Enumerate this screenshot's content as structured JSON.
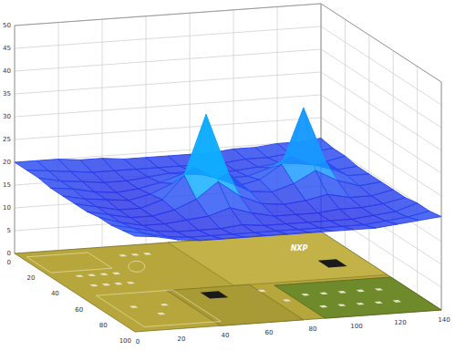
{
  "chart_data": {
    "type": "surface",
    "x": [
      0,
      10,
      20,
      30,
      40,
      50,
      60,
      70,
      80,
      90,
      100,
      110,
      120,
      130,
      140
    ],
    "y": [
      0,
      10,
      20,
      30,
      40,
      50,
      60,
      70,
      80,
      90,
      100
    ],
    "z": [
      [
        20,
        20,
        20,
        19.5,
        19.5,
        19,
        19,
        19,
        19,
        19,
        19.5,
        19.5,
        20,
        20,
        20.5
      ],
      [
        20,
        19.5,
        19,
        18.5,
        18.5,
        18.5,
        18.5,
        18.5,
        18.5,
        18.5,
        19,
        19,
        19.5,
        19.5,
        20
      ],
      [
        20,
        19,
        18.5,
        18,
        18,
        18.5,
        19,
        19,
        18.5,
        18.5,
        19,
        19.5,
        19,
        19,
        20
      ],
      [
        19.5,
        19,
        18,
        17.5,
        18,
        19,
        20.5,
        20,
        19,
        19,
        20.5,
        23,
        20.5,
        19,
        19.5
      ],
      [
        19.5,
        18.5,
        18,
        17.5,
        18.5,
        20.5,
        24,
        21,
        19,
        20,
        23,
        35,
        23,
        19.5,
        19.5
      ],
      [
        19.5,
        18.5,
        17.5,
        17.5,
        19,
        24,
        37,
        24,
        19.5,
        19,
        20.5,
        23,
        20.5,
        19,
        19.5
      ],
      [
        19.5,
        18.5,
        17.5,
        17.5,
        18.5,
        20.5,
        24,
        20.5,
        18.5,
        18,
        18.5,
        19.5,
        18.5,
        18.5,
        19.5
      ],
      [
        20,
        18.5,
        17.5,
        17.5,
        18,
        18.5,
        20,
        18.5,
        17.5,
        17.5,
        17.5,
        18,
        18,
        18.5,
        19.5
      ],
      [
        20,
        19,
        18,
        17.5,
        17.5,
        17.5,
        18,
        17.5,
        17.5,
        17.5,
        17.5,
        17.5,
        18,
        18.5,
        20
      ],
      [
        20.5,
        19.5,
        18.5,
        18,
        18,
        18,
        18,
        18,
        18,
        18,
        18,
        18,
        18.5,
        19,
        20
      ],
      [
        21,
        20.5,
        19.5,
        19,
        19,
        19,
        19,
        19,
        19,
        19,
        19,
        19,
        19.5,
        20,
        20.5
      ]
    ],
    "xlim": [
      0,
      140
    ],
    "ylim": [
      0,
      100
    ],
    "zlim": [
      0,
      50
    ],
    "xticks": [
      0,
      20,
      40,
      60,
      80,
      100,
      120,
      140
    ],
    "yticks": [
      0,
      20,
      40,
      60,
      80,
      100
    ],
    "zticks": [
      0,
      5,
      10,
      15,
      20,
      25,
      30,
      35,
      40,
      45,
      50
    ],
    "grid": true,
    "annotations": [
      "NXP"
    ]
  }
}
